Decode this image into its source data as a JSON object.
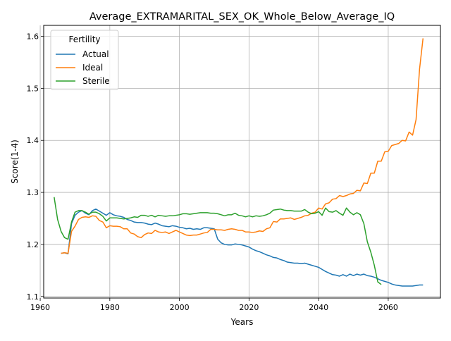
{
  "chart_data": {
    "type": "line",
    "title": "Average_EXTRAMARITAL_SEX_OK_Whole_Below_Average_IQ",
    "xlabel": "Years",
    "ylabel": "Score(1-4)",
    "xlim": [
      1961,
      2075
    ],
    "ylim": [
      1.097,
      1.621
    ],
    "x_ticks": [
      1960,
      1980,
      2000,
      2020,
      2040,
      2060
    ],
    "y_ticks": [
      1.1,
      1.2,
      1.3,
      1.4,
      1.5,
      1.6
    ],
    "x_tick_labels": [
      "1960",
      "1980",
      "2000",
      "2020",
      "2040",
      "2060"
    ],
    "y_tick_labels": [
      "1.1",
      "1.2",
      "1.3",
      "1.4",
      "1.5",
      "1.6"
    ],
    "grid": true,
    "legend": {
      "title": "Fertility",
      "position": "top-left"
    },
    "series": [
      {
        "name": "Actual",
        "color": "#1f77b4",
        "points": [
          [
            1966,
            1.183
          ],
          [
            1967,
            1.184
          ],
          [
            1968,
            1.182
          ],
          [
            1969,
            1.24
          ],
          [
            1970,
            1.256
          ],
          [
            1971,
            1.262
          ],
          [
            1972,
            1.265
          ],
          [
            1973,
            1.26
          ],
          [
            1974,
            1.257
          ],
          [
            1975,
            1.265
          ],
          [
            1976,
            1.268
          ],
          [
            1977,
            1.264
          ],
          [
            1978,
            1.26
          ],
          [
            1979,
            1.256
          ],
          [
            1980,
            1.261
          ],
          [
            1981,
            1.257
          ],
          [
            1982,
            1.255
          ],
          [
            1983,
            1.254
          ],
          [
            1984,
            1.252
          ],
          [
            1985,
            1.248
          ],
          [
            1986,
            1.246
          ],
          [
            1987,
            1.243
          ],
          [
            1988,
            1.242
          ],
          [
            1989,
            1.242
          ],
          [
            1990,
            1.241
          ],
          [
            1991,
            1.239
          ],
          [
            1992,
            1.238
          ],
          [
            1993,
            1.241
          ],
          [
            1994,
            1.239
          ],
          [
            1995,
            1.236
          ],
          [
            1996,
            1.235
          ],
          [
            1997,
            1.234
          ],
          [
            1998,
            1.236
          ],
          [
            1999,
            1.235
          ],
          [
            2000,
            1.233
          ],
          [
            2001,
            1.232
          ],
          [
            2002,
            1.23
          ],
          [
            2003,
            1.231
          ],
          [
            2004,
            1.229
          ],
          [
            2005,
            1.23
          ],
          [
            2006,
            1.229
          ],
          [
            2007,
            1.232
          ],
          [
            2008,
            1.232
          ],
          [
            2009,
            1.231
          ],
          [
            2010,
            1.23
          ],
          [
            2011,
            1.21
          ],
          [
            2012,
            1.203
          ],
          [
            2013,
            1.2
          ],
          [
            2014,
            1.199
          ],
          [
            2015,
            1.199
          ],
          [
            2016,
            1.201
          ],
          [
            2017,
            1.2
          ],
          [
            2018,
            1.199
          ],
          [
            2019,
            1.197
          ],
          [
            2020,
            1.195
          ],
          [
            2021,
            1.191
          ],
          [
            2022,
            1.188
          ],
          [
            2023,
            1.186
          ],
          [
            2024,
            1.183
          ],
          [
            2025,
            1.18
          ],
          [
            2026,
            1.178
          ],
          [
            2027,
            1.175
          ],
          [
            2028,
            1.174
          ],
          [
            2029,
            1.171
          ],
          [
            2030,
            1.169
          ],
          [
            2031,
            1.166
          ],
          [
            2032,
            1.165
          ],
          [
            2033,
            1.164
          ],
          [
            2034,
            1.164
          ],
          [
            2035,
            1.163
          ],
          [
            2036,
            1.164
          ],
          [
            2037,
            1.162
          ],
          [
            2038,
            1.16
          ],
          [
            2039,
            1.158
          ],
          [
            2040,
            1.156
          ],
          [
            2041,
            1.152
          ],
          [
            2042,
            1.148
          ],
          [
            2043,
            1.145
          ],
          [
            2044,
            1.142
          ],
          [
            2045,
            1.141
          ],
          [
            2046,
            1.139
          ],
          [
            2047,
            1.142
          ],
          [
            2048,
            1.139
          ],
          [
            2049,
            1.143
          ],
          [
            2050,
            1.14
          ],
          [
            2051,
            1.143
          ],
          [
            2052,
            1.141
          ],
          [
            2053,
            1.143
          ],
          [
            2054,
            1.14
          ],
          [
            2055,
            1.139
          ],
          [
            2056,
            1.137
          ],
          [
            2057,
            1.134
          ],
          [
            2058,
            1.131
          ],
          [
            2059,
            1.129
          ],
          [
            2060,
            1.127
          ],
          [
            2061,
            1.124
          ],
          [
            2062,
            1.122
          ],
          [
            2063,
            1.121
          ],
          [
            2064,
            1.12
          ],
          [
            2065,
            1.12
          ],
          [
            2066,
            1.12
          ],
          [
            2067,
            1.12
          ],
          [
            2068,
            1.121
          ],
          [
            2069,
            1.122
          ],
          [
            2070,
            1.122
          ]
        ]
      },
      {
        "name": "Ideal",
        "color": "#ff7f0e",
        "points": [
          [
            1966,
            1.183
          ],
          [
            1967,
            1.184
          ],
          [
            1968,
            1.183
          ],
          [
            1969,
            1.225
          ],
          [
            1970,
            1.235
          ],
          [
            1971,
            1.248
          ],
          [
            1972,
            1.252
          ],
          [
            1973,
            1.253
          ],
          [
            1974,
            1.252
          ],
          [
            1975,
            1.255
          ],
          [
            1976,
            1.254
          ],
          [
            1977,
            1.246
          ],
          [
            1978,
            1.243
          ],
          [
            1979,
            1.232
          ],
          [
            1980,
            1.236
          ],
          [
            1981,
            1.235
          ],
          [
            1982,
            1.235
          ],
          [
            1983,
            1.234
          ],
          [
            1984,
            1.23
          ],
          [
            1985,
            1.23
          ],
          [
            1986,
            1.222
          ],
          [
            1987,
            1.22
          ],
          [
            1988,
            1.215
          ],
          [
            1989,
            1.213
          ],
          [
            1990,
            1.219
          ],
          [
            1991,
            1.222
          ],
          [
            1992,
            1.221
          ],
          [
            1993,
            1.227
          ],
          [
            1994,
            1.224
          ],
          [
            1995,
            1.223
          ],
          [
            1996,
            1.224
          ],
          [
            1997,
            1.221
          ],
          [
            1998,
            1.224
          ],
          [
            1999,
            1.227
          ],
          [
            2000,
            1.224
          ],
          [
            2001,
            1.221
          ],
          [
            2002,
            1.218
          ],
          [
            2003,
            1.217
          ],
          [
            2004,
            1.218
          ],
          [
            2005,
            1.218
          ],
          [
            2006,
            1.22
          ],
          [
            2007,
            1.222
          ],
          [
            2008,
            1.223
          ],
          [
            2009,
            1.229
          ],
          [
            2010,
            1.229
          ],
          [
            2011,
            1.228
          ],
          [
            2012,
            1.228
          ],
          [
            2013,
            1.227
          ],
          [
            2014,
            1.229
          ],
          [
            2015,
            1.23
          ],
          [
            2016,
            1.229
          ],
          [
            2017,
            1.227
          ],
          [
            2018,
            1.227
          ],
          [
            2019,
            1.224
          ],
          [
            2020,
            1.224
          ],
          [
            2021,
            1.223
          ],
          [
            2022,
            1.224
          ],
          [
            2023,
            1.226
          ],
          [
            2024,
            1.225
          ],
          [
            2025,
            1.23
          ],
          [
            2026,
            1.232
          ],
          [
            2027,
            1.244
          ],
          [
            2028,
            1.243
          ],
          [
            2029,
            1.249
          ],
          [
            2030,
            1.249
          ],
          [
            2031,
            1.25
          ],
          [
            2032,
            1.251
          ],
          [
            2033,
            1.248
          ],
          [
            2034,
            1.25
          ],
          [
            2035,
            1.252
          ],
          [
            2036,
            1.255
          ],
          [
            2037,
            1.256
          ],
          [
            2038,
            1.26
          ],
          [
            2039,
            1.262
          ],
          [
            2040,
            1.27
          ],
          [
            2041,
            1.268
          ],
          [
            2042,
            1.278
          ],
          [
            2043,
            1.28
          ],
          [
            2044,
            1.287
          ],
          [
            2045,
            1.288
          ],
          [
            2046,
            1.294
          ],
          [
            2047,
            1.292
          ],
          [
            2048,
            1.294
          ],
          [
            2049,
            1.297
          ],
          [
            2050,
            1.298
          ],
          [
            2051,
            1.304
          ],
          [
            2052,
            1.303
          ],
          [
            2053,
            1.318
          ],
          [
            2054,
            1.317
          ],
          [
            2055,
            1.337
          ],
          [
            2056,
            1.337
          ],
          [
            2057,
            1.36
          ],
          [
            2058,
            1.36
          ],
          [
            2059,
            1.378
          ],
          [
            2060,
            1.379
          ],
          [
            2061,
            1.39
          ],
          [
            2062,
            1.392
          ],
          [
            2063,
            1.394
          ],
          [
            2064,
            1.4
          ],
          [
            2065,
            1.399
          ],
          [
            2066,
            1.416
          ],
          [
            2067,
            1.41
          ],
          [
            2068,
            1.44
          ],
          [
            2069,
            1.537
          ],
          [
            2070,
            1.596
          ]
        ]
      },
      {
        "name": "Sterile",
        "color": "#2ca02c",
        "points": [
          [
            1964,
            1.291
          ],
          [
            1965,
            1.248
          ],
          [
            1966,
            1.225
          ],
          [
            1967,
            1.213
          ],
          [
            1968,
            1.21
          ],
          [
            1969,
            1.243
          ],
          [
            1970,
            1.262
          ],
          [
            1971,
            1.265
          ],
          [
            1972,
            1.265
          ],
          [
            1973,
            1.262
          ],
          [
            1974,
            1.258
          ],
          [
            1975,
            1.262
          ],
          [
            1976,
            1.262
          ],
          [
            1977,
            1.259
          ],
          [
            1978,
            1.254
          ],
          [
            1979,
            1.245
          ],
          [
            1980,
            1.251
          ],
          [
            1981,
            1.251
          ],
          [
            1982,
            1.251
          ],
          [
            1983,
            1.25
          ],
          [
            1984,
            1.249
          ],
          [
            1985,
            1.25
          ],
          [
            1986,
            1.251
          ],
          [
            1987,
            1.253
          ],
          [
            1988,
            1.252
          ],
          [
            1989,
            1.256
          ],
          [
            1990,
            1.256
          ],
          [
            1991,
            1.254
          ],
          [
            1992,
            1.256
          ],
          [
            1993,
            1.253
          ],
          [
            1994,
            1.256
          ],
          [
            1995,
            1.255
          ],
          [
            1996,
            1.254
          ],
          [
            1997,
            1.255
          ],
          [
            1998,
            1.255
          ],
          [
            1999,
            1.256
          ],
          [
            2000,
            1.257
          ],
          [
            2001,
            1.259
          ],
          [
            2002,
            1.259
          ],
          [
            2003,
            1.258
          ],
          [
            2004,
            1.259
          ],
          [
            2005,
            1.26
          ],
          [
            2006,
            1.261
          ],
          [
            2007,
            1.261
          ],
          [
            2008,
            1.261
          ],
          [
            2009,
            1.26
          ],
          [
            2010,
            1.26
          ],
          [
            2011,
            1.259
          ],
          [
            2012,
            1.257
          ],
          [
            2013,
            1.255
          ],
          [
            2014,
            1.257
          ],
          [
            2015,
            1.257
          ],
          [
            2016,
            1.26
          ],
          [
            2017,
            1.256
          ],
          [
            2018,
            1.255
          ],
          [
            2019,
            1.253
          ],
          [
            2020,
            1.255
          ],
          [
            2021,
            1.253
          ],
          [
            2022,
            1.255
          ],
          [
            2023,
            1.254
          ],
          [
            2024,
            1.255
          ],
          [
            2025,
            1.257
          ],
          [
            2026,
            1.26
          ],
          [
            2027,
            1.266
          ],
          [
            2028,
            1.267
          ],
          [
            2029,
            1.268
          ],
          [
            2030,
            1.266
          ],
          [
            2031,
            1.265
          ],
          [
            2032,
            1.265
          ],
          [
            2033,
            1.264
          ],
          [
            2034,
            1.264
          ],
          [
            2035,
            1.264
          ],
          [
            2036,
            1.267
          ],
          [
            2037,
            1.262
          ],
          [
            2038,
            1.259
          ],
          [
            2039,
            1.26
          ],
          [
            2040,
            1.263
          ],
          [
            2041,
            1.256
          ],
          [
            2042,
            1.27
          ],
          [
            2043,
            1.263
          ],
          [
            2044,
            1.262
          ],
          [
            2045,
            1.265
          ],
          [
            2046,
            1.26
          ],
          [
            2047,
            1.256
          ],
          [
            2048,
            1.27
          ],
          [
            2049,
            1.262
          ],
          [
            2050,
            1.257
          ],
          [
            2051,
            1.261
          ],
          [
            2052,
            1.257
          ],
          [
            2053,
            1.24
          ],
          [
            2054,
            1.205
          ],
          [
            2055,
            1.185
          ],
          [
            2056,
            1.16
          ],
          [
            2057,
            1.128
          ],
          [
            2058,
            1.123
          ]
        ]
      }
    ]
  }
}
